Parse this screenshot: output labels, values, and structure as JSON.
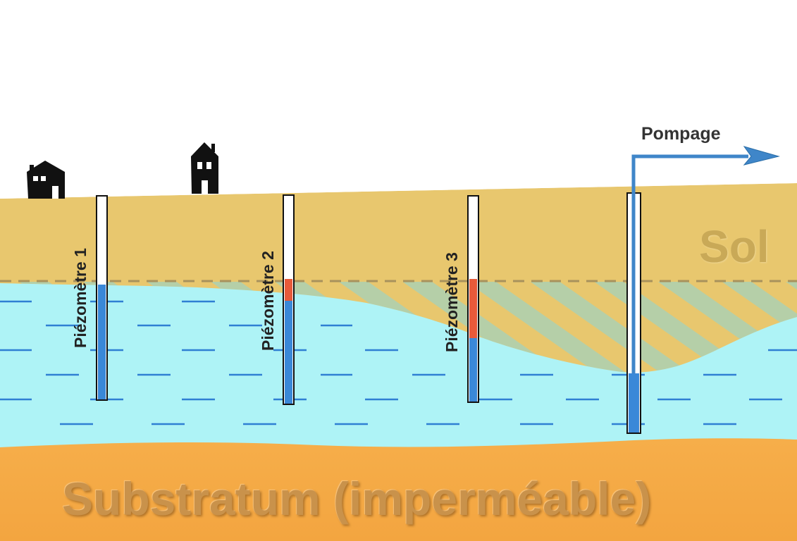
{
  "diagram": {
    "piezometers": [
      {
        "label": "Piézomètre 1"
      },
      {
        "label": "Piézomètre 2"
      },
      {
        "label": "Piézomètre 3"
      }
    ],
    "pumping_label": "Pompage",
    "soil_label": "Sol",
    "substratum_label": "Substratum (imperméable)",
    "colors": {
      "soil": "#e8c76e",
      "water": "#aef3f6",
      "water_dash": "#2f7fd3",
      "substratum": "#f6ae4a",
      "well_water": "#3a88d8",
      "drawdown": "#e85a3a",
      "pipe": "#3f86c9",
      "house": "#111111"
    }
  }
}
